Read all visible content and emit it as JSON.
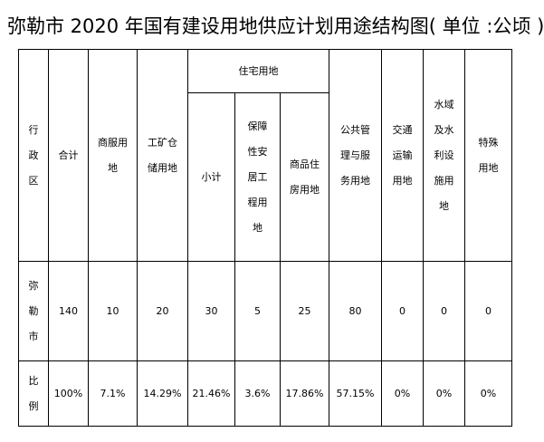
{
  "title": "弥勒市 2020 年国有建设用地供应计划用途结构图( 单位 :公顷 )",
  "headers": {
    "region": "行\n政\n区",
    "total": "合计",
    "commercial": "商服用\n地",
    "industrial": "工矿仓\n储用地",
    "residential_group": "住宅用地",
    "res_subtotal": "小计",
    "res_affordable": "保障\n性安\n居工\n程用\n地",
    "res_commodity": "商品住\n房用地",
    "public_service": "公共管\n理与服\n务用地",
    "transport": "交通\n运输\n用地",
    "water": "水域\n及水\n利设\n施用\n地",
    "special": "特殊\n用地"
  },
  "rows": [
    {
      "label": "弥\n勒\n市",
      "values": [
        "140",
        "10",
        "20",
        "30",
        "5",
        "25",
        "80",
        "0",
        "0",
        "0"
      ]
    },
    {
      "label": "比\n例",
      "values": [
        "100%",
        "7.1%",
        "14.29%",
        "21.46%",
        "3.6%",
        "17.86%",
        "57.15%",
        "0%",
        "0%",
        "0%"
      ]
    }
  ]
}
